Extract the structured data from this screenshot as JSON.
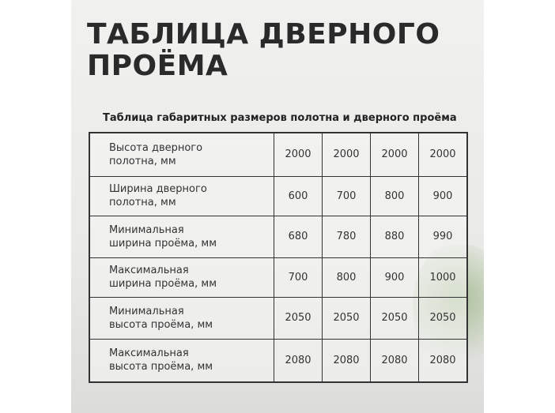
{
  "header": {
    "title": [
      "ТАБЛИЦА ДВЕРНОГО",
      "ПРОЁМА"
    ],
    "subtitle": "Таблица габаритных размеров полотна и дверного проёма"
  },
  "table": {
    "rows": [
      {
        "label": [
          "Высота дверного",
          "полотна, мм"
        ],
        "values": [
          2000,
          2000,
          2000,
          2000
        ]
      },
      {
        "label": [
          "Ширина дверного",
          "полотна, мм"
        ],
        "values": [
          600,
          700,
          800,
          900
        ]
      },
      {
        "label": [
          "Минимальная",
          "ширина проёма, мм"
        ],
        "values": [
          680,
          780,
          880,
          990
        ]
      },
      {
        "label": [
          "Максимальная",
          "ширина проёма, мм"
        ],
        "values": [
          700,
          800,
          900,
          1000
        ]
      },
      {
        "label": [
          "Минимальная",
          "высота проёма, мм"
        ],
        "values": [
          2050,
          2050,
          2050,
          2050
        ]
      },
      {
        "label": [
          "Максимальная",
          "высота проёма, мм"
        ],
        "values": [
          2080,
          2080,
          2080,
          2080
        ]
      }
    ]
  }
}
